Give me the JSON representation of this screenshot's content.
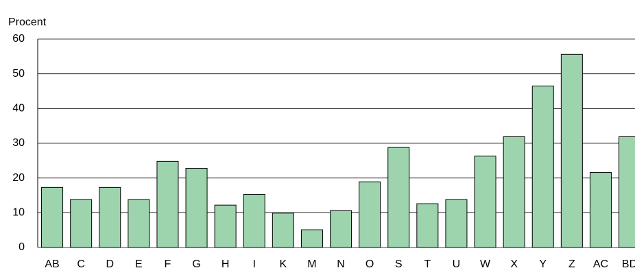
{
  "chart_data": {
    "type": "bar",
    "y_label": "Procent",
    "categories": [
      "AB",
      "C",
      "D",
      "E",
      "F",
      "G",
      "H",
      "I",
      "K",
      "M",
      "N",
      "O",
      "S",
      "T",
      "U",
      "W",
      "X",
      "Y",
      "Z",
      "AC",
      "BD"
    ],
    "values": [
      17.3,
      13.8,
      17.3,
      13.8,
      24.8,
      22.8,
      12.2,
      15.3,
      9.9,
      5.1,
      10.6,
      18.9,
      28.8,
      12.6,
      13.8,
      26.3,
      31.9,
      46.5,
      55.6,
      21.6,
      31.9
    ],
    "color": "#9dd4ae",
    "ylim": [
      0,
      60
    ],
    "yticks": [
      0,
      10,
      20,
      30,
      40,
      50,
      60
    ],
    "grid": true
  }
}
